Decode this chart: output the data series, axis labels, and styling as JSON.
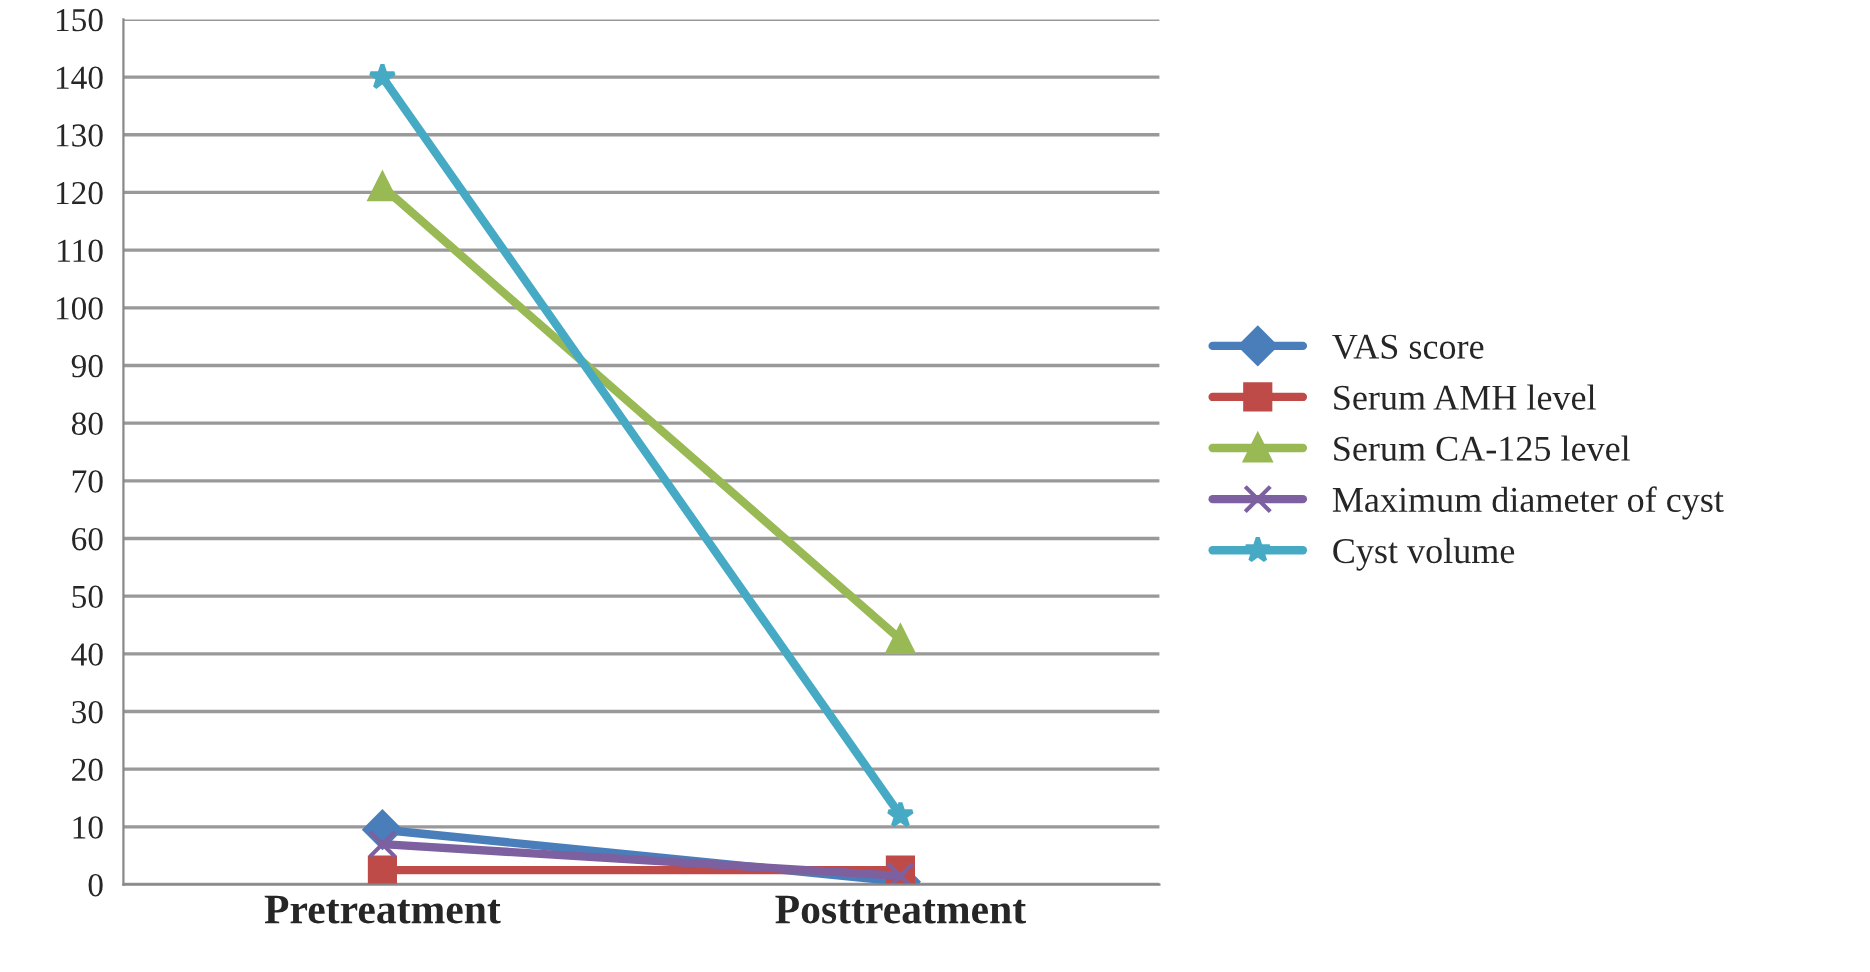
{
  "chart_data": {
    "type": "line",
    "categories": [
      "Pretreatment",
      "Posttreatment"
    ],
    "series": [
      {
        "name": "VAS score",
        "color": "#4a7ebb",
        "marker": "diamond",
        "values": [
          9.5,
          0.5
        ]
      },
      {
        "name": "Serum AMH level",
        "color": "#be4b48",
        "marker": "square",
        "values": [
          2.5,
          2.5
        ]
      },
      {
        "name": "Serum CA-125 level",
        "color": "#98b954",
        "marker": "triangle",
        "values": [
          121,
          42.5
        ]
      },
      {
        "name": "Maximum diameter of cyst",
        "color": "#7d60a0",
        "marker": "cross",
        "values": [
          7,
          1.5
        ]
      },
      {
        "name": "Cyst volume",
        "color": "#46aac5",
        "marker": "star",
        "values": [
          140,
          12
        ]
      }
    ],
    "ylim": [
      0,
      150
    ],
    "yticks": [
      0,
      10,
      20,
      30,
      40,
      50,
      60,
      70,
      80,
      90,
      100,
      110,
      120,
      130,
      140,
      150
    ],
    "grid": "y",
    "legend": "right"
  }
}
